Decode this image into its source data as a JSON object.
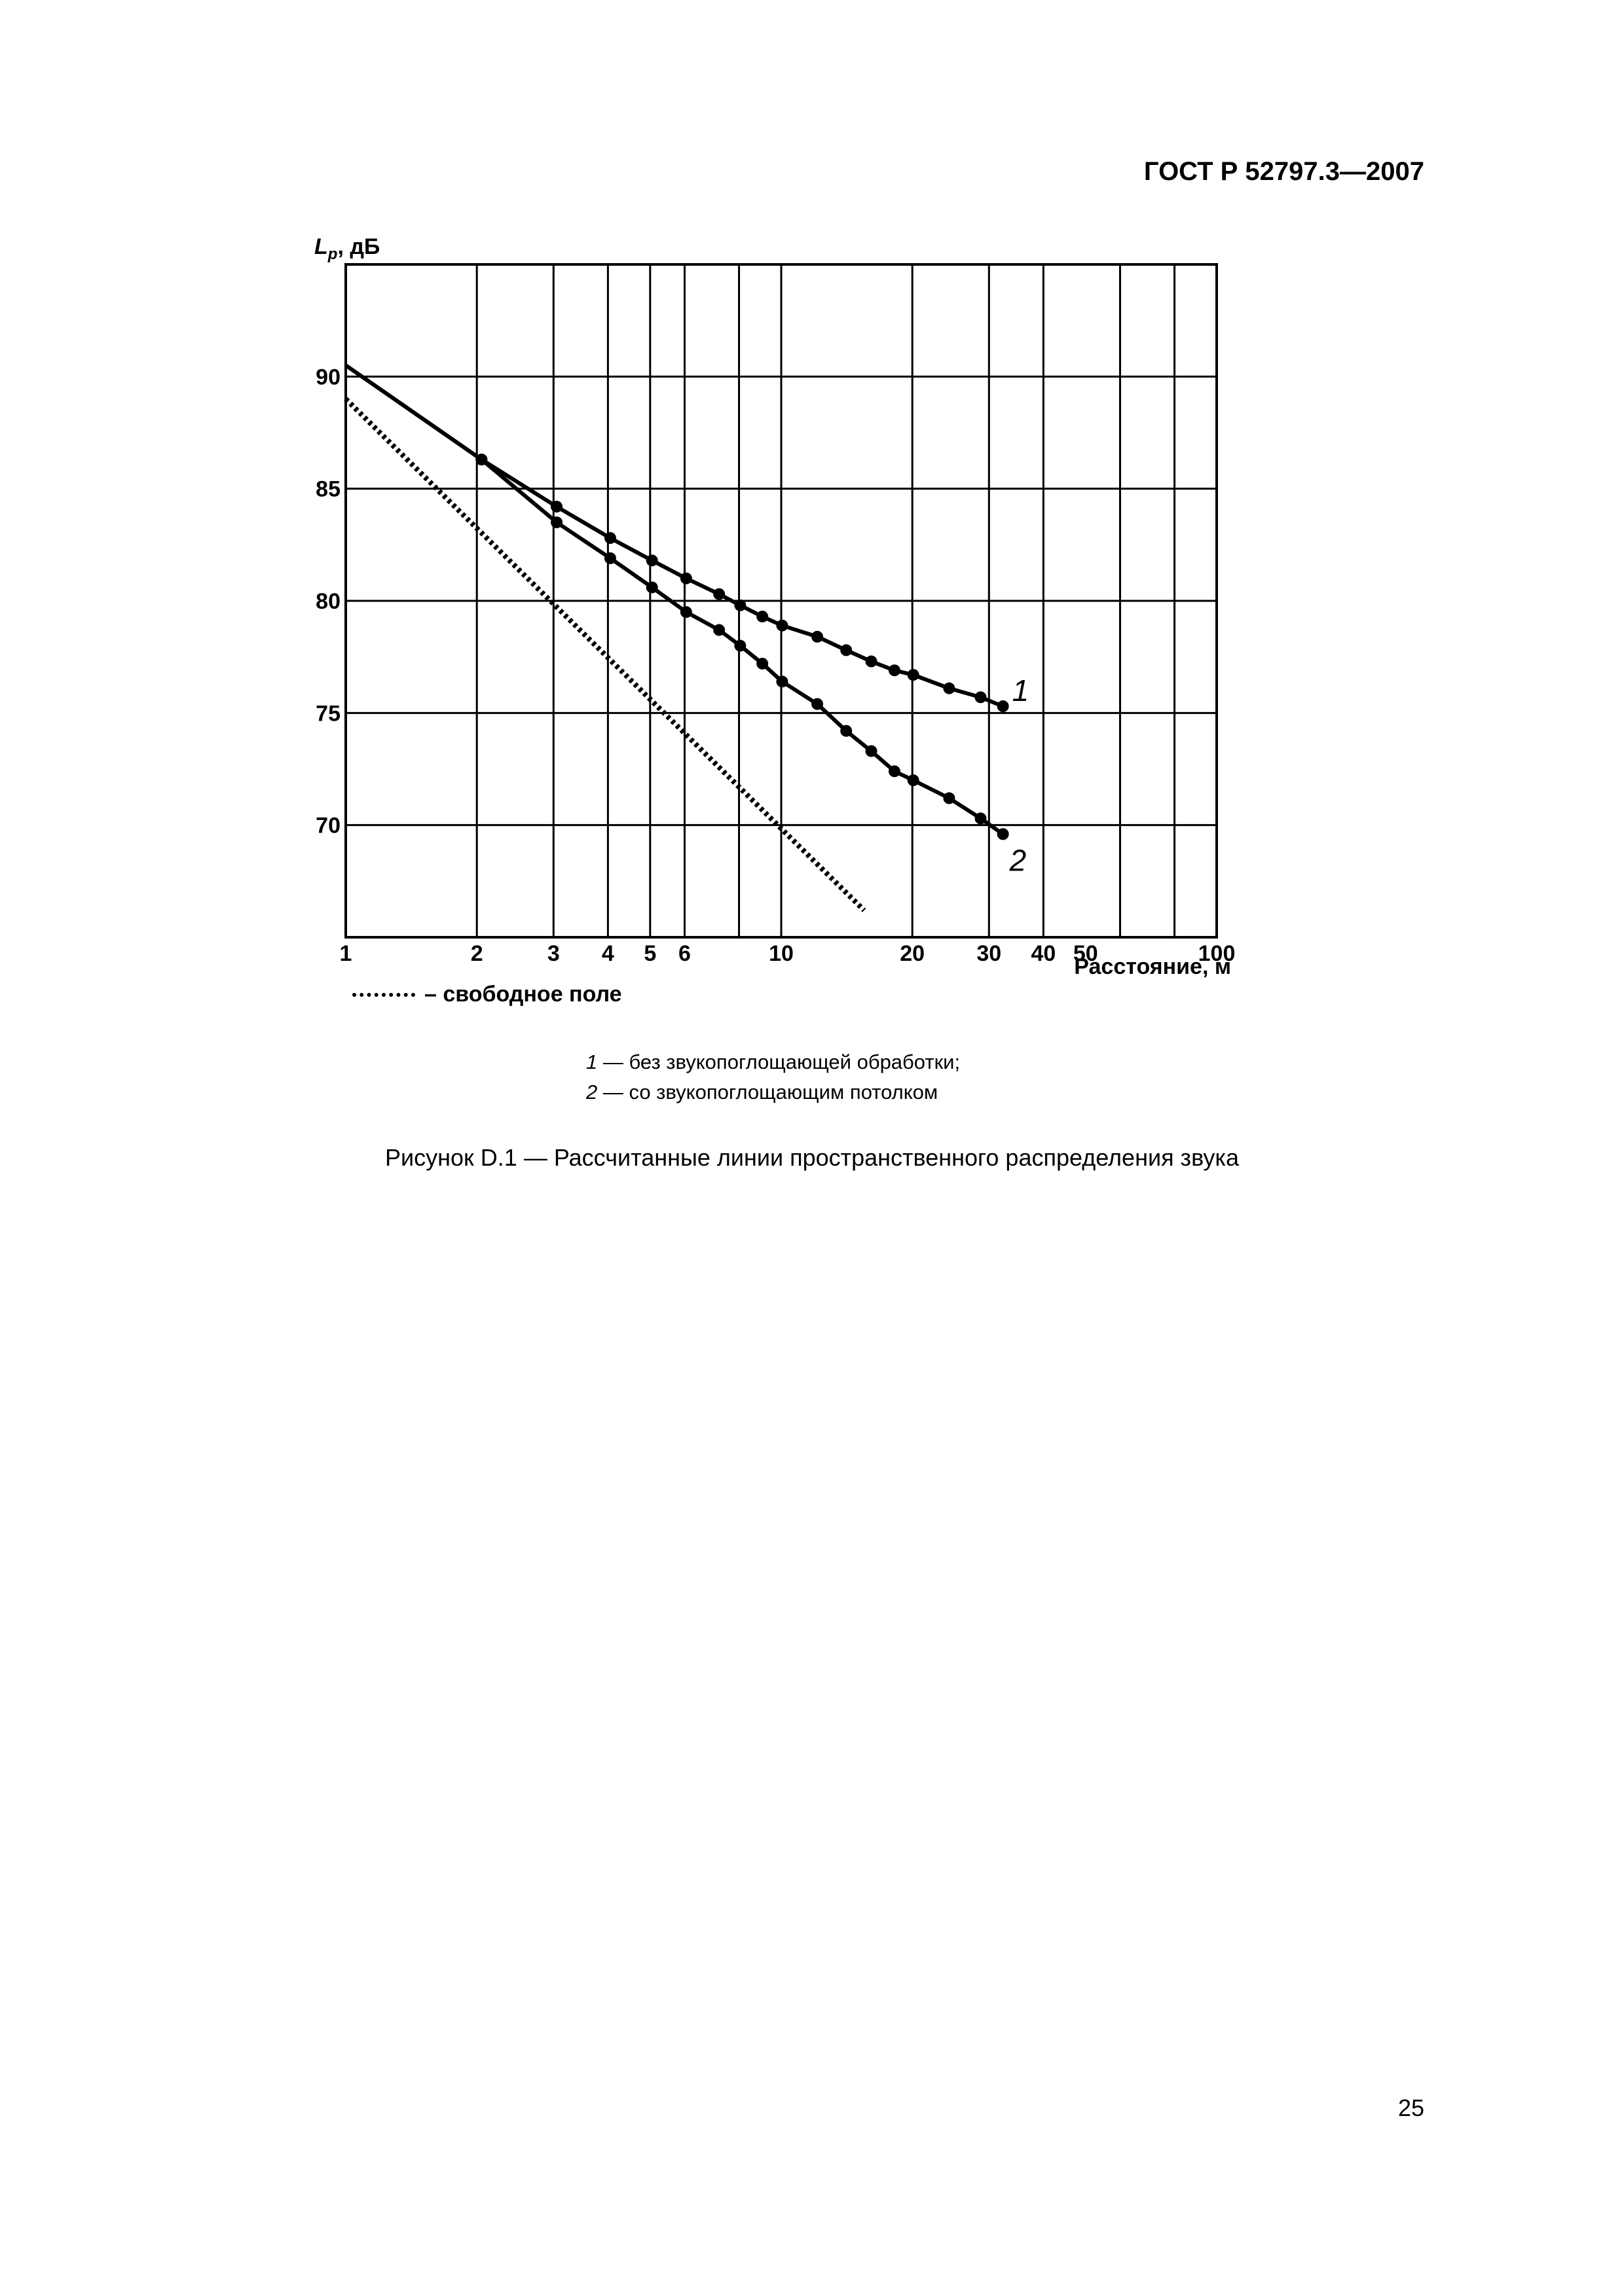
{
  "header": {
    "title": "ГОСТ Р 52797.3—2007"
  },
  "chart_data": {
    "type": "line",
    "x_scale": "log",
    "xlim": [
      1,
      100
    ],
    "ylim": [
      65,
      95
    ],
    "ylabel_main": "L",
    "ylabel_sub": "p",
    "ylabel_unit": ", дБ",
    "xlabel": "Расстояние, м",
    "x_ticks": [
      1,
      2,
      3,
      4,
      5,
      6,
      10,
      20,
      30,
      40,
      50,
      100
    ],
    "x_grid": [
      1,
      2,
      3,
      4,
      5,
      6,
      8,
      10,
      20,
      30,
      40,
      60,
      80,
      100
    ],
    "y_ticks": [
      70,
      75,
      80,
      85,
      90
    ],
    "grid": true,
    "series": [
      {
        "name": "1",
        "style": "solid-markers",
        "x": [
          1,
          2.05,
          3.05,
          4.05,
          5.05,
          6.05,
          7.2,
          8.05,
          9.05,
          10.05,
          12.1,
          14.1,
          16.1,
          18.2,
          20.1,
          24.3,
          28.7,
          32.3
        ],
        "y": [
          90.5,
          86.3,
          84.2,
          82.8,
          81.8,
          81.0,
          80.3,
          79.8,
          79.3,
          78.9,
          78.4,
          77.8,
          77.3,
          76.9,
          76.7,
          76.1,
          75.7,
          75.3
        ]
      },
      {
        "name": "2",
        "style": "solid-markers",
        "x": [
          1,
          2.05,
          3.05,
          4.05,
          5.05,
          6.05,
          7.2,
          8.05,
          9.05,
          10.05,
          12.1,
          14.1,
          16.1,
          18.2,
          20.1,
          24.3,
          28.7,
          32.3
        ],
        "y": [
          90.5,
          86.3,
          83.5,
          81.9,
          80.6,
          79.5,
          78.7,
          78.0,
          77.2,
          76.4,
          75.4,
          74.2,
          73.3,
          72.4,
          72.0,
          71.2,
          70.3,
          69.6
        ]
      },
      {
        "name": "free-field",
        "style": "dotted",
        "x": [
          1,
          15.5
        ],
        "y": [
          89.0,
          66.2
        ]
      }
    ],
    "series_labels": [
      "1",
      "2"
    ]
  },
  "legend": {
    "free_field": "– свободное поле",
    "items": [
      {
        "num": "1",
        "text": " — без звукопоглощающей обработки;"
      },
      {
        "num": "2",
        "text": " — со звукопоглощающим потолком"
      }
    ]
  },
  "caption": "Рисунок D.1 — Рассчитанные линии пространственного распределения звука",
  "page_number": "25"
}
